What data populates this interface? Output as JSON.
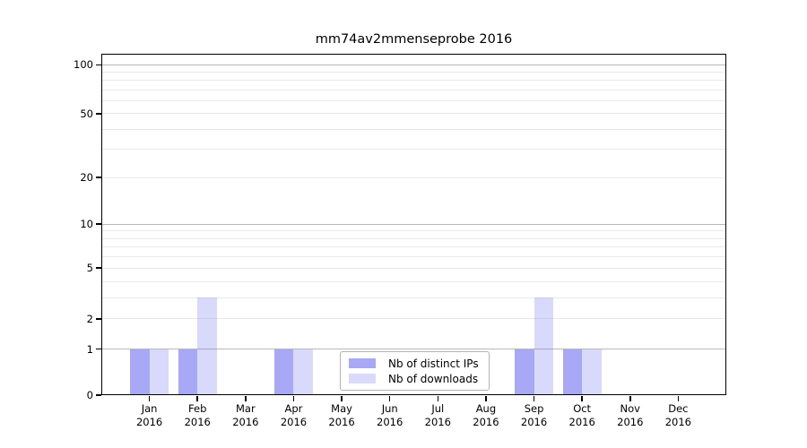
{
  "figure": {
    "background": "#ffffff"
  },
  "chart_data": {
    "type": "bar",
    "title": "mm74av2mmenseprobe 2016",
    "categories": [
      "Jan",
      "Feb",
      "Mar",
      "Apr",
      "May",
      "Jun",
      "Jul",
      "Aug",
      "Sep",
      "Oct",
      "Nov",
      "Dec"
    ],
    "category_year_label": "2016",
    "series": [
      {
        "name": "Nb of distinct IPs",
        "color_hex": "#a9a9f6",
        "color_rgba": "rgba(110,110,240,0.6)",
        "values": [
          1,
          1,
          0,
          1,
          0,
          0,
          0,
          0,
          1,
          1,
          0,
          0
        ]
      },
      {
        "name": "Nb of downloads",
        "color_hex": "#d9d9f9",
        "color_rgba": "rgba(110,110,240,0.26)",
        "values": [
          1,
          3,
          0,
          1,
          0,
          0,
          0,
          0,
          3,
          1,
          0,
          0
        ]
      }
    ],
    "y_axis": {
      "tick_values": [
        0,
        1,
        2,
        5,
        10,
        20,
        50,
        100
      ],
      "scale": "log-like (0,1,2,5,10,20,50,100)",
      "dark_gridline_values": [
        1,
        10,
        100
      ],
      "light_gridline_values": [
        2,
        3,
        4,
        5,
        6,
        7,
        8,
        9,
        20,
        30,
        40,
        50,
        60,
        70,
        80,
        90
      ],
      "dark_gridline_color": "#b8b8b8",
      "light_gridline_color": "#e8e8e8"
    },
    "legend": {
      "position": "lower center"
    },
    "layout": {
      "grid": true,
      "bar_group": "side-by-side pair per month"
    }
  }
}
